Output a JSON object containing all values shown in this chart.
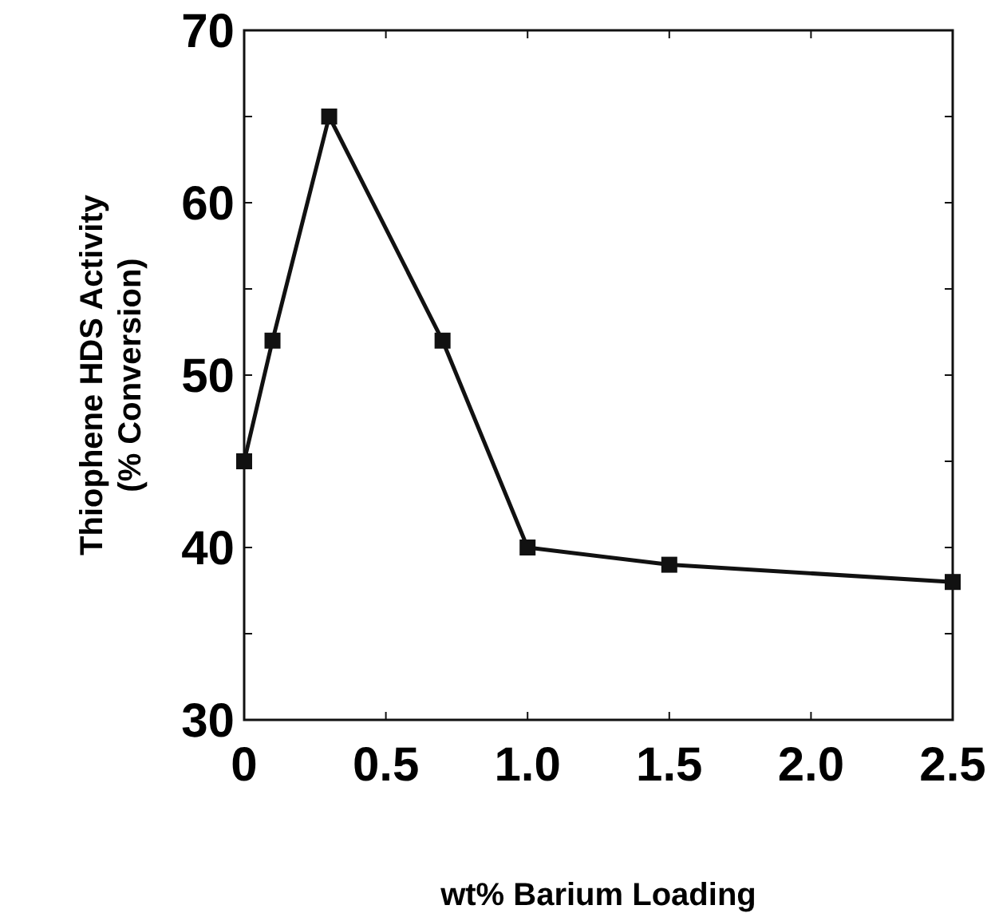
{
  "chart_data": {
    "type": "line",
    "xlabel": "wt% Barium Loading",
    "ylabel": "Thiophene HDS Activity\n(% Conversion)",
    "x": [
      0,
      0.1,
      0.3,
      0.7,
      1.0,
      1.5,
      2.5
    ],
    "series": [
      {
        "color": "#111111",
        "values": [
          45,
          52,
          65,
          52,
          40,
          39,
          38
        ]
      }
    ],
    "xlim": [
      0,
      2.5
    ],
    "xticks": [
      0,
      0.5,
      {
        "value": 1,
        "label": "1.0"
      },
      1.5,
      {
        "value": 2,
        "label": "2.0"
      },
      2.5
    ],
    "ylim": [
      30,
      70
    ],
    "yticks": [
      30,
      {
        "value": 35,
        "label": null
      },
      40,
      {
        "value": 45,
        "label": null
      },
      50,
      {
        "value": 55,
        "label": null
      },
      60,
      {
        "value": 65,
        "label": null
      },
      70
    ],
    "marker": "square",
    "line_style": "solid"
  }
}
